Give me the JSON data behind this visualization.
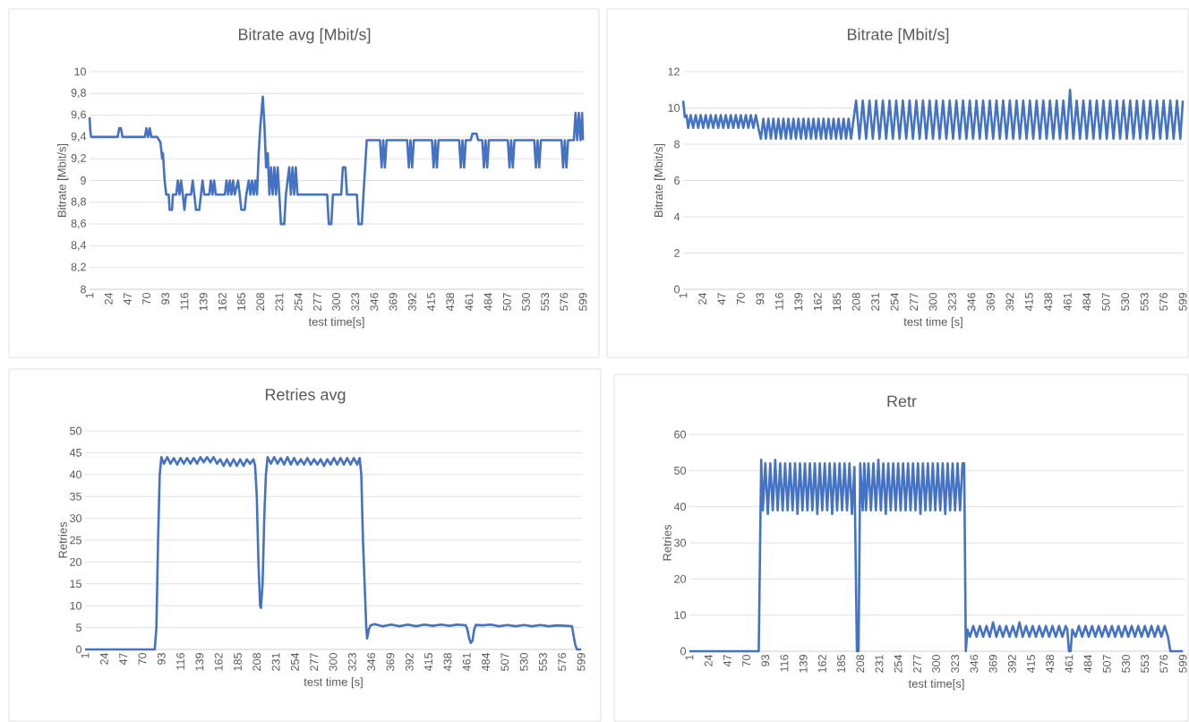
{
  "chart_data": [
    {
      "type": "line",
      "title": "Bitrate avg [Mbit/s]",
      "xlabel": "test time[s]",
      "ylabel": "Bitrate [Mbit/s]",
      "color": "#4472c4",
      "grid": "y",
      "xlim": [
        1,
        600
      ],
      "xticks": [
        1,
        24,
        47,
        70,
        93,
        116,
        139,
        162,
        185,
        208,
        231,
        254,
        277,
        300,
        323,
        346,
        369,
        392,
        415,
        438,
        461,
        484,
        507,
        530,
        553,
        576,
        599
      ],
      "ylim": [
        8,
        10
      ],
      "yticks": [
        8,
        {
          "value": 8.2,
          "label": "8,2"
        },
        {
          "value": 8.4,
          "label": "8,4"
        },
        {
          "value": 8.6,
          "label": "8,6"
        },
        {
          "value": 8.8,
          "label": "8,8"
        },
        9,
        {
          "value": 9.2,
          "label": "9,2"
        },
        {
          "value": 9.4,
          "label": "9,4"
        },
        {
          "value": 9.6,
          "label": "9,6"
        },
        {
          "value": 9.8,
          "label": "9,8"
        },
        10
      ],
      "x": [
        1,
        2,
        3,
        35,
        37,
        39,
        41,
        68,
        70,
        72,
        74,
        76,
        83,
        87,
        89,
        90,
        92,
        94,
        97,
        98,
        101,
        102,
        106,
        108,
        110,
        112,
        114,
        116,
        118,
        124,
        126,
        128,
        130,
        134,
        136,
        138,
        140,
        146,
        148,
        150,
        152,
        154,
        165,
        167,
        169,
        171,
        173,
        175,
        177,
        181,
        183,
        185,
        189,
        191,
        194,
        196,
        198,
        200,
        202,
        204,
        206,
        208,
        211,
        213,
        215,
        217,
        219,
        221,
        223,
        225,
        227,
        229,
        231,
        233,
        237,
        239,
        243,
        245,
        247,
        249,
        251,
        253,
        289,
        291,
        294,
        296,
        306,
        308,
        311,
        313,
        325,
        327,
        331,
        333,
        335,
        337,
        353,
        355,
        357,
        359,
        361,
        386,
        388,
        390,
        392,
        394,
        416,
        418,
        420,
        422,
        424,
        449,
        451,
        453,
        455,
        457,
        463,
        465,
        470,
        472,
        477,
        479,
        481,
        483,
        485,
        508,
        510,
        512,
        514,
        516,
        540,
        542,
        544,
        546,
        548,
        573,
        575,
        577,
        579,
        581,
        588,
        590,
        592,
        594,
        596,
        598,
        599
      ],
      "values": [
        9.58,
        9.45,
        9.4,
        9.4,
        9.48,
        9.48,
        9.4,
        9.4,
        9.48,
        9.4,
        9.48,
        9.4,
        9.4,
        9.35,
        9.2,
        9.25,
        9.0,
        8.87,
        8.87,
        8.73,
        8.73,
        8.87,
        8.87,
        9.0,
        8.87,
        9.0,
        8.87,
        8.73,
        8.87,
        8.87,
        9.0,
        8.87,
        8.73,
        8.73,
        8.87,
        9.0,
        8.87,
        8.87,
        9.0,
        8.87,
        9.0,
        8.87,
        8.87,
        9.0,
        8.87,
        9.0,
        8.87,
        9.0,
        8.87,
        9.0,
        8.87,
        8.73,
        8.73,
        8.87,
        9.0,
        8.87,
        9.0,
        8.87,
        9.0,
        8.87,
        9.25,
        9.5,
        9.77,
        9.5,
        9.12,
        9.25,
        8.87,
        9.12,
        8.87,
        9.12,
        8.87,
        9.12,
        8.87,
        8.6,
        8.6,
        8.87,
        9.12,
        8.87,
        9.12,
        8.87,
        9.12,
        8.87,
        8.87,
        8.6,
        8.6,
        8.87,
        8.87,
        9.12,
        9.12,
        8.87,
        8.87,
        8.6,
        8.6,
        8.87,
        9.12,
        9.37,
        9.37,
        9.12,
        9.37,
        9.12,
        9.37,
        9.37,
        9.12,
        9.37,
        9.12,
        9.37,
        9.37,
        9.12,
        9.37,
        9.12,
        9.37,
        9.37,
        9.12,
        9.37,
        9.12,
        9.37,
        9.37,
        9.43,
        9.43,
        9.37,
        9.37,
        9.12,
        9.37,
        9.12,
        9.37,
        9.37,
        9.12,
        9.37,
        9.12,
        9.37,
        9.37,
        9.12,
        9.37,
        9.12,
        9.37,
        9.37,
        9.12,
        9.37,
        9.12,
        9.37,
        9.37,
        9.62,
        9.37,
        9.62,
        9.37,
        9.62,
        9.37
      ]
    },
    {
      "type": "line",
      "title": "Bitrate [Mbit/s]",
      "xlabel": "test time [s]",
      "ylabel": "Bitrate [Mbit/s]",
      "color": "#4472c4",
      "grid": "y",
      "xlim": [
        1,
        600
      ],
      "xticks": [
        1,
        24,
        47,
        70,
        93,
        116,
        139,
        162,
        185,
        208,
        231,
        254,
        277,
        300,
        323,
        346,
        369,
        392,
        415,
        438,
        461,
        484,
        507,
        530,
        553,
        576,
        599
      ],
      "ylim": [
        0,
        12
      ],
      "yticks": [
        0,
        2,
        4,
        6,
        8,
        10,
        12
      ],
      "x": [
        1,
        3,
        5,
        7,
        10,
        13,
        16,
        19,
        22,
        25,
        28,
        31,
        34,
        37,
        40,
        43,
        46,
        49,
        52,
        55,
        58,
        61,
        64,
        67,
        70,
        73,
        76,
        79,
        82,
        85,
        88,
        91,
        94,
        97,
        100,
        103,
        106,
        109,
        112,
        115,
        118,
        121,
        124,
        127,
        130,
        133,
        136,
        139,
        142,
        145,
        148,
        151,
        154,
        157,
        160,
        163,
        166,
        169,
        172,
        175,
        178,
        181,
        184,
        187,
        190,
        193,
        196,
        199,
        202,
        205,
        208,
        212,
        216,
        220,
        224,
        228,
        232,
        236,
        240,
        244,
        248,
        252,
        256,
        260,
        264,
        268,
        272,
        276,
        280,
        284,
        288,
        292,
        296,
        300,
        304,
        308,
        312,
        316,
        320,
        324,
        328,
        332,
        336,
        340,
        344,
        348,
        352,
        356,
        360,
        364,
        368,
        372,
        376,
        380,
        384,
        388,
        392,
        396,
        400,
        404,
        408,
        412,
        416,
        420,
        424,
        428,
        432,
        436,
        440,
        444,
        448,
        452,
        456,
        460,
        464,
        468,
        472,
        476,
        480,
        484,
        488,
        492,
        496,
        500,
        504,
        508,
        512,
        516,
        520,
        524,
        528,
        532,
        536,
        540,
        544,
        548,
        552,
        556,
        560,
        564,
        568,
        572,
        576,
        580,
        584,
        588,
        592,
        596,
        599
      ],
      "values": [
        10.4,
        9.5,
        9.6,
        8.9,
        9.6,
        8.9,
        9.6,
        8.9,
        9.6,
        8.9,
        9.6,
        8.9,
        9.6,
        8.9,
        9.6,
        8.9,
        9.6,
        8.9,
        9.6,
        8.9,
        9.6,
        8.9,
        9.6,
        8.9,
        9.6,
        8.9,
        9.6,
        8.9,
        9.6,
        8.9,
        9.6,
        8.9,
        8.3,
        9.4,
        8.3,
        9.4,
        8.3,
        9.4,
        8.3,
        9.4,
        8.3,
        9.4,
        8.3,
        9.4,
        8.3,
        9.4,
        8.3,
        9.4,
        8.3,
        9.4,
        8.3,
        9.4,
        8.3,
        9.4,
        8.3,
        9.4,
        8.3,
        9.4,
        8.3,
        9.4,
        8.3,
        9.4,
        8.3,
        9.4,
        8.3,
        9.4,
        8.3,
        9.4,
        8.3,
        9.4,
        10.4,
        8.3,
        10.4,
        8.3,
        10.4,
        8.3,
        10.4,
        8.3,
        10.4,
        8.3,
        10.4,
        8.3,
        10.4,
        8.3,
        10.4,
        8.3,
        10.4,
        8.3,
        10.4,
        8.3,
        10.4,
        8.3,
        10.4,
        8.3,
        10.4,
        8.3,
        10.4,
        8.3,
        10.4,
        8.3,
        10.4,
        8.3,
        10.4,
        8.3,
        10.4,
        8.3,
        10.4,
        8.3,
        10.4,
        8.3,
        10.4,
        8.3,
        10.4,
        8.3,
        10.4,
        8.3,
        10.4,
        8.3,
        10.4,
        8.3,
        10.4,
        8.3,
        10.4,
        8.3,
        10.4,
        8.3,
        10.4,
        8.3,
        10.4,
        8.3,
        10.4,
        8.3,
        10.4,
        8.3,
        11.0,
        8.3,
        10.4,
        8.3,
        10.4,
        8.3,
        10.4,
        8.3,
        10.4,
        8.3,
        10.4,
        8.3,
        10.4,
        8.3,
        10.4,
        8.3,
        10.4,
        8.3,
        10.4,
        8.3,
        10.4,
        8.3,
        10.4,
        8.3,
        10.4,
        8.3,
        10.4,
        8.3,
        10.4,
        8.3,
        10.4,
        8.3,
        10.4,
        8.3,
        10.4
      ]
    },
    {
      "type": "line",
      "title": "Retries avg",
      "xlabel": "test time [s]",
      "ylabel": "Retries",
      "color": "#4472c4",
      "grid": "y",
      "xlim": [
        1,
        600
      ],
      "xticks": [
        1,
        24,
        47,
        70,
        93,
        116,
        139,
        162,
        185,
        208,
        231,
        254,
        277,
        300,
        323,
        346,
        369,
        392,
        415,
        438,
        461,
        484,
        507,
        530,
        553,
        576,
        599
      ],
      "ylim": [
        0,
        50
      ],
      "yticks": [
        0,
        5,
        10,
        15,
        20,
        25,
        30,
        35,
        40,
        45,
        50
      ],
      "x": [
        1,
        85,
        87,
        89,
        91,
        93,
        96,
        100,
        104,
        108,
        112,
        116,
        120,
        124,
        128,
        132,
        136,
        140,
        144,
        148,
        152,
        156,
        160,
        164,
        168,
        172,
        176,
        180,
        184,
        188,
        192,
        196,
        200,
        204,
        206,
        208,
        210,
        212,
        213,
        215,
        217,
        219,
        221,
        225,
        229,
        233,
        237,
        241,
        245,
        249,
        253,
        257,
        261,
        265,
        269,
        273,
        277,
        281,
        285,
        289,
        293,
        297,
        301,
        305,
        309,
        313,
        317,
        321,
        325,
        329,
        332,
        334,
        336,
        338,
        340,
        341,
        343,
        345,
        350,
        360,
        370,
        380,
        390,
        400,
        410,
        420,
        430,
        440,
        450,
        460,
        462,
        464,
        466,
        468,
        470,
        472,
        480,
        490,
        500,
        510,
        520,
        530,
        540,
        550,
        560,
        570,
        580,
        588,
        590,
        592,
        594,
        599
      ],
      "values": [
        0,
        0,
        5,
        25,
        40,
        44,
        42.5,
        44,
        42.5,
        43.8,
        42.3,
        43.8,
        42.5,
        43.8,
        42.5,
        43.8,
        42.5,
        44,
        42.8,
        44,
        42.8,
        44,
        42.5,
        43.5,
        42,
        43.5,
        42,
        43.5,
        42,
        43.5,
        42,
        43.5,
        42.5,
        43.5,
        42,
        35,
        20,
        10,
        9.5,
        15,
        30,
        40,
        44,
        42.5,
        44,
        42.5,
        43.8,
        42.3,
        44,
        42.3,
        43.8,
        42.3,
        43.5,
        42.3,
        43.8,
        42.3,
        43.5,
        42.3,
        43.5,
        42,
        43.5,
        42.3,
        43.8,
        42.3,
        43.8,
        42.3,
        43.8,
        42.3,
        43.8,
        42.3,
        43.8,
        40,
        25,
        15,
        5,
        2.5,
        4.5,
        5.5,
        5.8,
        5.3,
        5.7,
        5.3,
        5.7,
        5.3,
        5.7,
        5.4,
        5.7,
        5.4,
        5.7,
        5.5,
        4.5,
        2.5,
        1.5,
        2,
        4.5,
        5.6,
        5.5,
        5.7,
        5.3,
        5.6,
        5.3,
        5.6,
        5.3,
        5.6,
        5.3,
        5.5,
        5.4,
        5.3,
        3,
        1,
        0,
        0
      ]
    },
    {
      "type": "line",
      "title": "Retr",
      "xlabel": "test time[s]",
      "ylabel": "Retries",
      "color": "#4472c4",
      "grid": "y",
      "xlim": [
        1,
        600
      ],
      "xticks": [
        1,
        24,
        47,
        70,
        93,
        116,
        139,
        162,
        185,
        208,
        231,
        254,
        277,
        300,
        323,
        346,
        369,
        392,
        415,
        438,
        461,
        484,
        507,
        530,
        553,
        576,
        599
      ],
      "ylim": [
        0,
        60
      ],
      "yticks": [
        0,
        10,
        20,
        30,
        40,
        50,
        60
      ],
      "x": [
        1,
        85,
        88,
        90,
        93,
        96,
        99,
        102,
        105,
        108,
        111,
        114,
        117,
        120,
        123,
        126,
        129,
        132,
        135,
        138,
        141,
        144,
        147,
        150,
        153,
        156,
        159,
        162,
        165,
        168,
        171,
        174,
        177,
        180,
        183,
        186,
        189,
        192,
        195,
        198,
        201,
        204,
        206,
        208,
        211,
        213,
        215,
        218,
        221,
        224,
        227,
        230,
        233,
        236,
        239,
        242,
        245,
        248,
        251,
        254,
        257,
        260,
        263,
        266,
        269,
        272,
        275,
        278,
        281,
        284,
        287,
        290,
        293,
        296,
        299,
        302,
        305,
        308,
        311,
        314,
        317,
        320,
        323,
        326,
        329,
        332,
        334,
        336,
        338,
        341,
        345,
        349,
        353,
        357,
        361,
        365,
        369,
        373,
        377,
        381,
        385,
        389,
        393,
        397,
        401,
        405,
        409,
        413,
        417,
        421,
        425,
        429,
        433,
        437,
        441,
        445,
        449,
        453,
        457,
        459,
        461,
        463,
        465,
        469,
        473,
        477,
        481,
        485,
        489,
        493,
        497,
        501,
        505,
        509,
        513,
        517,
        521,
        525,
        529,
        533,
        537,
        541,
        545,
        549,
        553,
        557,
        561,
        565,
        569,
        573,
        577,
        581,
        584,
        599
      ],
      "values": [
        0,
        0,
        53,
        39,
        52,
        38,
        52,
        39,
        53,
        39,
        52,
        39,
        52,
        39,
        52,
        39,
        52,
        38,
        52,
        39,
        52,
        39,
        52,
        39,
        52,
        38,
        52,
        39,
        52,
        39,
        52,
        38,
        52,
        39,
        52,
        39,
        52,
        39,
        52,
        38,
        51,
        0,
        0,
        52,
        39,
        52,
        39,
        52,
        39,
        52,
        39,
        53,
        39,
        52,
        38,
        52,
        39,
        52,
        39,
        52,
        39,
        52,
        39,
        52,
        39,
        52,
        39,
        52,
        38,
        52,
        39,
        52,
        39,
        52,
        39,
        52,
        39,
        52,
        38,
        52,
        39,
        52,
        39,
        52,
        39,
        52,
        52,
        0,
        6,
        4,
        7,
        4,
        7,
        4,
        7,
        4,
        8,
        4,
        7,
        4,
        7,
        4,
        7,
        4,
        8,
        4,
        7,
        4,
        7,
        4,
        7,
        4,
        7,
        4,
        7,
        4,
        7,
        4,
        7,
        6,
        0,
        0,
        6,
        4,
        7,
        4,
        7,
        4,
        7,
        4,
        7,
        4,
        7,
        4,
        7,
        4,
        7,
        4,
        7,
        4,
        7,
        4,
        7,
        4,
        7,
        4,
        7,
        4,
        7,
        4,
        7,
        4,
        0,
        0
      ]
    }
  ]
}
